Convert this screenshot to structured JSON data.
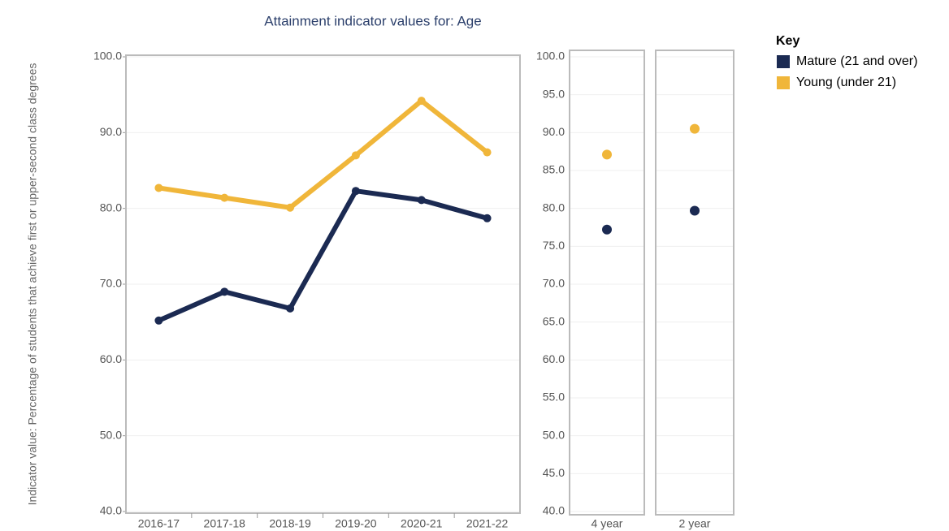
{
  "legend": {
    "title": "Key"
  },
  "chart_data": [
    {
      "type": "line",
      "title": "Attainment indicator values for: Age",
      "y_label": "Indicator value: Percentage of students that achieve first or upper-second class degrees",
      "categories": [
        "2016-17",
        "2017-18",
        "2018-19",
        "2019-20",
        "2020-21",
        "2021-22"
      ],
      "series": [
        {
          "name": "Mature (21 and over)",
          "color": "#1b2a52",
          "values": [
            65.2,
            69.0,
            66.8,
            82.3,
            81.1,
            78.7
          ]
        },
        {
          "name": "Young (under 21)",
          "color": "#f0b63a",
          "values": [
            82.7,
            81.4,
            80.1,
            87.0,
            94.2,
            87.4
          ]
        }
      ],
      "ylim": [
        40,
        100
      ],
      "yticks": [
        {
          "value": 40,
          "label": "40.0"
        },
        {
          "value": 50,
          "label": "50.0"
        },
        {
          "value": 60,
          "label": "60.0"
        },
        {
          "value": 70,
          "label": "70.0"
        },
        {
          "value": 80,
          "label": "80.0"
        },
        {
          "value": 90,
          "label": "90.0"
        },
        {
          "value": 100,
          "label": "100.0"
        }
      ],
      "grid": true
    },
    {
      "type": "dot",
      "categories": [
        "4 year",
        "2 year"
      ],
      "series": [
        {
          "name": "Mature (21 and over)",
          "color": "#1b2a52",
          "values": [
            77.2,
            79.7
          ]
        },
        {
          "name": "Young (under 21)",
          "color": "#f0b63a",
          "values": [
            87.1,
            90.5
          ]
        }
      ],
      "ylim": [
        40,
        100
      ],
      "yticks": [
        {
          "value": 40,
          "label": "40.0"
        },
        {
          "value": 45,
          "label": "45.0"
        },
        {
          "value": 50,
          "label": "50.0"
        },
        {
          "value": 55,
          "label": "55.0"
        },
        {
          "value": 60,
          "label": "60.0"
        },
        {
          "value": 65,
          "label": "65.0"
        },
        {
          "value": 70,
          "label": "70.0"
        },
        {
          "value": 75,
          "label": "75.0"
        },
        {
          "value": 80,
          "label": "80.0"
        },
        {
          "value": 85,
          "label": "85.0"
        },
        {
          "value": 90,
          "label": "90.0"
        },
        {
          "value": 95,
          "label": "95.0"
        },
        {
          "value": 100,
          "label": "100.0"
        }
      ],
      "grid": true
    }
  ]
}
